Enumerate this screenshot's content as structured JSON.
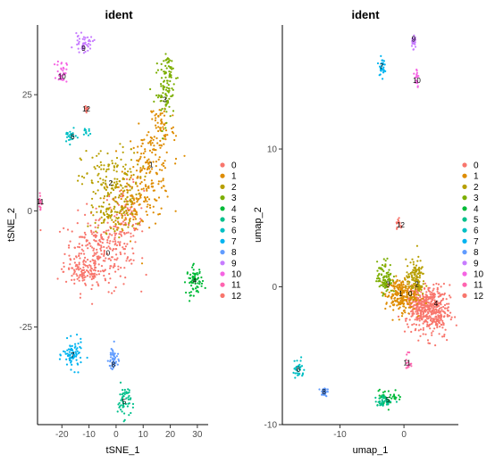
{
  "chart_data": [
    {
      "type": "scatter",
      "title": "ident",
      "xlabel": "tSNE_1",
      "ylabel": "tSNE_2",
      "xlim": [
        -29,
        34
      ],
      "ylim": [
        -46,
        40
      ],
      "xticks": [
        -20,
        -10,
        0,
        10,
        20,
        30
      ],
      "yticks": [
        -25,
        0,
        25
      ],
      "grid": false,
      "legend_position": "right",
      "clusters": [
        {
          "name": "0",
          "color": "#F8766D",
          "label_at": [
            -3,
            -9
          ],
          "n": 430,
          "blobs": [
            [
              -7,
              -9,
              10,
              7,
              0.55
            ],
            [
              3,
              -3,
              6,
              7,
              0.25
            ],
            [
              -12,
              -13,
              6,
              3,
              0.2
            ]
          ]
        },
        {
          "name": "1",
          "color": "#DE8C00",
          "label_at": [
            13,
            10
          ],
          "n": 300,
          "blobs": [
            [
              12,
              8,
              7,
              8,
              0.55
            ],
            [
              17,
              18,
              4,
              5,
              0.2
            ],
            [
              6,
              2,
              6,
              5,
              0.25
            ]
          ]
        },
        {
          "name": "2",
          "color": "#B79F00",
          "label_at": [
            -2,
            6
          ],
          "n": 240,
          "blobs": [
            [
              -2,
              6,
              9,
              6,
              0.65
            ],
            [
              -1,
              -1,
              7,
              3,
              0.35
            ]
          ]
        },
        {
          "name": "3",
          "color": "#7CAE00",
          "label_at": [
            18,
            24
          ],
          "n": 110,
          "blobs": [
            [
              18,
              25,
              3,
              5,
              0.65
            ],
            [
              20,
              30,
              2,
              3,
              0.35
            ]
          ]
        },
        {
          "name": "4",
          "color": "#00BA38",
          "label_at": [
            29,
            -15
          ],
          "n": 70,
          "blobs": [
            [
              29,
              -15,
              2.5,
              2.5,
              1
            ]
          ]
        },
        {
          "name": "5",
          "color": "#00C08B",
          "label_at": [
            3,
            -41
          ],
          "n": 55,
          "blobs": [
            [
              3,
              -41,
              2,
              3,
              1
            ]
          ]
        },
        {
          "name": "6",
          "color": "#00BFC4",
          "label_at": [
            -16,
            16
          ],
          "n": 35,
          "blobs": [
            [
              -17,
              16,
              2,
              1.2,
              0.7
            ],
            [
              -11,
              17,
              1.5,
              1,
              0.3
            ]
          ]
        },
        {
          "name": "7",
          "color": "#00B4F0",
          "label_at": [
            -16,
            -31
          ],
          "n": 80,
          "blobs": [
            [
              -16,
              -31,
              3,
              2.5,
              1
            ]
          ]
        },
        {
          "name": "8",
          "color": "#619CFF",
          "label_at": [
            -1,
            -33
          ],
          "n": 45,
          "blobs": [
            [
              -1,
              -32,
              1.5,
              2.5,
              1
            ]
          ]
        },
        {
          "name": "9",
          "color": "#C77CFF",
          "label_at": [
            -12,
            35
          ],
          "n": 45,
          "blobs": [
            [
              -12,
              36,
              3,
              1.5,
              1
            ]
          ]
        },
        {
          "name": "10",
          "color": "#F564E3",
          "label_at": [
            -20,
            29
          ],
          "n": 35,
          "blobs": [
            [
              -20,
              30,
              1.5,
              2,
              1
            ]
          ]
        },
        {
          "name": "11",
          "color": "#FF64B0",
          "label_at": [
            -28,
            2
          ],
          "n": 18,
          "blobs": [
            [
              -28,
              2,
              0.6,
              2,
              1
            ]
          ]
        },
        {
          "name": "12",
          "color": "#F8766D",
          "label_at": [
            -11,
            22
          ],
          "n": 10,
          "blobs": [
            [
              -11,
              22,
              0.8,
              0.6,
              1
            ]
          ]
        }
      ]
    },
    {
      "type": "scatter",
      "title": "ident",
      "xlabel": "umap_1",
      "ylabel": "umap_2",
      "xlim": [
        -19,
        8.5
      ],
      "ylim": [
        -10,
        19
      ],
      "xticks": [
        -10,
        0
      ],
      "yticks": [
        -10,
        0,
        10
      ],
      "grid": false,
      "legend_position": "right",
      "clusters": [
        {
          "name": "0",
          "color": "#F8766D",
          "label_at": [
            1,
            -0.5
          ],
          "n": 500,
          "blobs": [
            [
              4.5,
              -1.8,
              2.2,
              1.6,
              0.6
            ],
            [
              2.5,
              -1.2,
              2,
              1.2,
              0.4
            ]
          ]
        },
        {
          "name": "1",
          "color": "#DE8C00",
          "label_at": [
            -0.5,
            -0.5
          ],
          "n": 230,
          "blobs": [
            [
              -0.5,
              -0.6,
              2,
              1,
              1
            ]
          ]
        },
        {
          "name": "2",
          "color": "#B79F00",
          "label_at": [
            2,
            0.2
          ],
          "n": 130,
          "blobs": [
            [
              1.8,
              0.6,
              1.2,
              1.1,
              1
            ]
          ]
        },
        {
          "name": "3",
          "color": "#7CAE00",
          "label_at": [
            -2.5,
            0.2
          ],
          "n": 90,
          "blobs": [
            [
              -3,
              0.7,
              1,
              1,
              1
            ]
          ]
        },
        {
          "name": "4",
          "color": "#00BA38",
          "label_at": [
            5,
            -1.2
          ],
          "n": 45,
          "blobs": [
            [
              -2.5,
              -8,
              1.8,
              0.5,
              1
            ]
          ]
        },
        {
          "name": "5",
          "color": "#00C08B",
          "label_at": [
            -2.5,
            -8.2
          ],
          "n": 35,
          "blobs": [
            [
              -3,
              -8.3,
              1.2,
              0.3,
              1
            ]
          ]
        },
        {
          "name": "6",
          "color": "#00BFC4",
          "label_at": [
            -16.5,
            -6
          ],
          "n": 30,
          "blobs": [
            [
              -16.5,
              -6,
              0.7,
              0.8,
              1
            ]
          ]
        },
        {
          "name": "7",
          "color": "#00B4F0",
          "label_at": [
            -3.5,
            16
          ],
          "n": 30,
          "blobs": [
            [
              -3.5,
              16,
              0.4,
              0.5,
              1
            ]
          ]
        },
        {
          "name": "8",
          "color": "#619CFF",
          "label_at": [
            -12.5,
            -7.6
          ],
          "n": 25,
          "blobs": [
            [
              -12.5,
              -7.6,
              0.4,
              0.3,
              1
            ]
          ]
        },
        {
          "name": "9",
          "color": "#C77CFF",
          "label_at": [
            1.5,
            18
          ],
          "n": 25,
          "blobs": [
            [
              1.5,
              17.8,
              0.3,
              0.5,
              1
            ]
          ]
        },
        {
          "name": "10",
          "color": "#F564E3",
          "label_at": [
            2,
            15
          ],
          "n": 20,
          "blobs": [
            [
              2,
              15.2,
              0.3,
              0.8,
              1
            ]
          ]
        },
        {
          "name": "11",
          "color": "#FF64B0",
          "label_at": [
            0.5,
            -5.5
          ],
          "n": 15,
          "blobs": [
            [
              0.7,
              -5.5,
              0.3,
              0.7,
              1
            ]
          ]
        },
        {
          "name": "12",
          "color": "#F8766D",
          "label_at": [
            -0.5,
            4.5
          ],
          "n": 15,
          "blobs": [
            [
              -0.7,
              4.5,
              0.5,
              0.4,
              1
            ]
          ]
        }
      ]
    }
  ]
}
